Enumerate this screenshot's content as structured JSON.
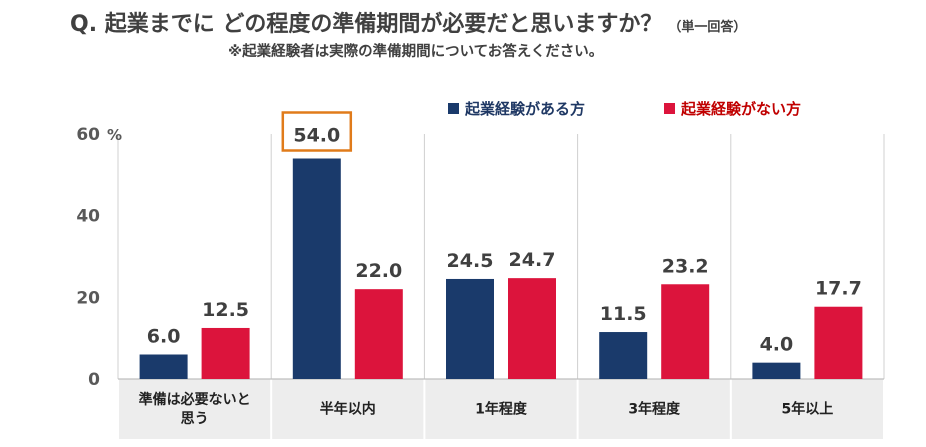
{
  "header": {
    "title": "Q. 起業までに どの程度の準備期間が必要だと思いますか？",
    "note": "（単一回答）",
    "subtitle": "※起業経験者は実際の準備期間についてお答えください。"
  },
  "chart_data": {
    "type": "bar",
    "ylim": [
      0,
      60
    ],
    "y_ticks": [
      0,
      20,
      40,
      60
    ],
    "y_unit": "%",
    "categories": [
      [
        "準備は必要ないと",
        "思う"
      ],
      [
        "半年以内"
      ],
      [
        "1年程度"
      ],
      [
        "3年程度"
      ],
      [
        "5年以上"
      ]
    ],
    "series": [
      {
        "name": "起業経験がある方",
        "color": "#1a3a6b",
        "values": [
          6.0,
          54.0,
          24.5,
          11.5,
          4.0
        ]
      },
      {
        "name": "起業経験がない方",
        "color": "#dc143c",
        "values": [
          12.5,
          22.0,
          24.7,
          23.2,
          17.7
        ]
      }
    ],
    "highlight": {
      "series": 0,
      "category": 1,
      "color": "#e07b1a"
    },
    "legend_position": "top-right"
  }
}
